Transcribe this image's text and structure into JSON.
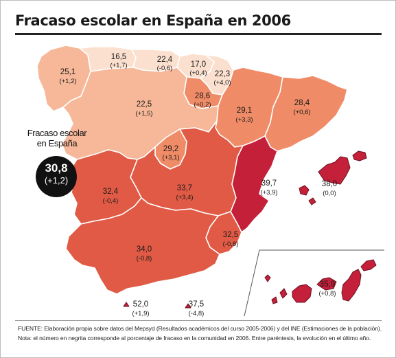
{
  "title": "Fracaso escolar en España en 2006",
  "national": {
    "label_line1": "Fracaso escolar",
    "label_line2": "en España",
    "value": "30,8",
    "change": "(+1,2)"
  },
  "colors": {
    "lightest": "#fbe0cf",
    "light": "#f6b898",
    "medium": "#ef8c67",
    "dark": "#e05a45",
    "darkest": "#c5203a",
    "islands": "#c0203c",
    "background": "#ffffff"
  },
  "regions": [
    {
      "id": "galicia",
      "value": "25,1",
      "change": "(+1,2)",
      "shade": "light"
    },
    {
      "id": "asturias",
      "value": "16,5",
      "change": "(+1,7)",
      "shade": "lightest"
    },
    {
      "id": "cantabria",
      "value": "22,4",
      "change": "(-0,6)",
      "shade": "lightest"
    },
    {
      "id": "pais-vasco",
      "value": "17,0",
      "change": "(+0,4)",
      "shade": "lightest"
    },
    {
      "id": "navarra",
      "value": "22,3",
      "change": "(+4,0)",
      "shade": "lightest"
    },
    {
      "id": "la-rioja",
      "value": "28,6",
      "change": "(+0,2)",
      "shade": "medium"
    },
    {
      "id": "castilla-y-leon",
      "value": "22,5",
      "change": "(+1,5)",
      "shade": "light"
    },
    {
      "id": "aragon",
      "value": "29,1",
      "change": "(+3,3)",
      "shade": "medium"
    },
    {
      "id": "cataluna",
      "value": "28,4",
      "change": "(+0,6)",
      "shade": "medium"
    },
    {
      "id": "madrid",
      "value": "29,2",
      "change": "(+3,1)",
      "shade": "medium"
    },
    {
      "id": "extremadura",
      "value": "32,4",
      "change": "(-0,4)",
      "shade": "dark"
    },
    {
      "id": "castilla-la-mancha",
      "value": "33,7",
      "change": "(+3,4)",
      "shade": "dark"
    },
    {
      "id": "comunidad-valenciana",
      "value": "39,7",
      "change": "(+3,9)",
      "shade": "darkest"
    },
    {
      "id": "baleares",
      "value": "38,0",
      "change": "(0,0)",
      "shade": "darkest"
    },
    {
      "id": "murcia",
      "value": "32,5",
      "change": "(-0,8)",
      "shade": "dark"
    },
    {
      "id": "andalucia",
      "value": "34,0",
      "change": "(-0,8)",
      "shade": "dark"
    },
    {
      "id": "canarias",
      "value": "35,9",
      "change": "(+0,8)",
      "shade": "darkest"
    },
    {
      "id": "ceuta",
      "value": "52,0",
      "change": "(+1,9)",
      "shade": "darkest"
    },
    {
      "id": "melilla",
      "value": "37,5",
      "change": "(-4,8)",
      "shade": "darkest"
    }
  ],
  "footer": {
    "source": "FUENTE: Elaboración propia sobre datos del Mepsyd (Resultados académicos del curso 2005-2006) y del INE (Estimaciones de la población).",
    "note": "Nota: el número en negrita corresponde al porcentaje de fracaso en la comunidad en 2006. Entre paréntesis, la evolución en el último año."
  }
}
